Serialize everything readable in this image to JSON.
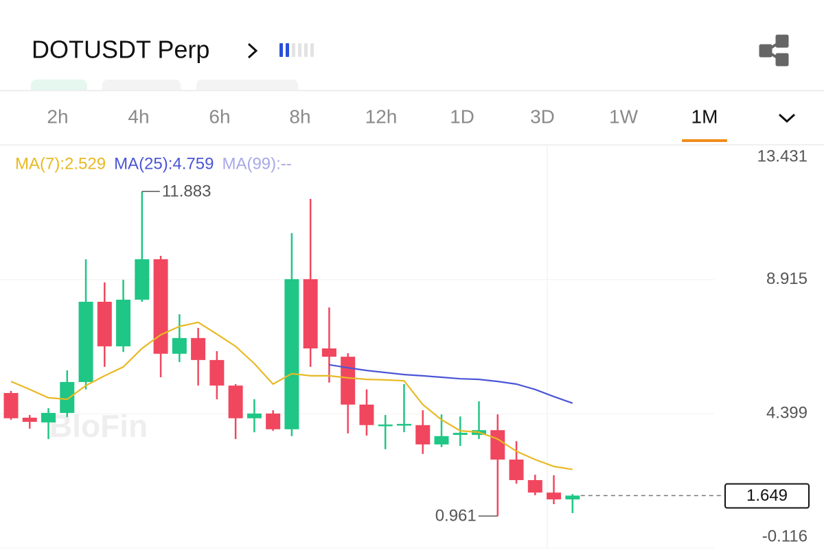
{
  "header": {
    "title": "DOTUSDT Perp"
  },
  "tabs": [
    "2h",
    "4h",
    "6h",
    "8h",
    "12h",
    "1D",
    "3D",
    "1W",
    "1M"
  ],
  "active_tab": 8,
  "chart_data": {
    "type": "candlestick",
    "watermark": "BloFin",
    "up_color": "#1fc685",
    "down_color": "#f0475f",
    "ylim": [
      -0.116,
      13.431
    ],
    "yticks": [
      -0.116,
      4.399,
      8.915,
      13.431
    ],
    "grid": true,
    "open": [
      5.1,
      4.27,
      4.11,
      4.43,
      5.47,
      8.17,
      6.67,
      8.24,
      9.6,
      6.42,
      6.95,
      6.21,
      5.35,
      4.25,
      4.41,
      3.88,
      8.93,
      6.6,
      6.32,
      4.71,
      4.0,
      4.02,
      4.02,
      3.37,
      3.69,
      3.69,
      3.85,
      2.86,
      2.17,
      1.75,
      1.52
    ],
    "high": [
      5.17,
      4.36,
      4.59,
      5.86,
      9.6,
      8.82,
      8.91,
      11.883,
      9.715,
      7.75,
      7.29,
      6.51,
      5.4,
      4.89,
      4.52,
      10.48,
      11.63,
      7.98,
      6.44,
      5.22,
      4.36,
      5.4,
      4.52,
      4.38,
      4.31,
      4.82,
      4.38,
      3.48,
      2.35,
      2.33,
      1.7
    ],
    "low": [
      4.2,
      3.9,
      3.55,
      4.29,
      5.22,
      5.98,
      6.48,
      8.17,
      5.63,
      6.14,
      5.35,
      4.89,
      3.55,
      3.78,
      3.83,
      3.65,
      5.98,
      5.45,
      3.74,
      3.67,
      3.21,
      3.78,
      3.05,
      3.28,
      3.32,
      3.55,
      0.961,
      2.05,
      1.66,
      1.36,
      1.06
    ],
    "close": [
      4.25,
      4.13,
      4.43,
      5.47,
      8.17,
      6.67,
      8.24,
      9.6,
      6.42,
      6.95,
      6.21,
      5.35,
      4.25,
      4.41,
      3.88,
      8.93,
      6.6,
      6.32,
      4.71,
      4.02,
      4.04,
      4.06,
      3.37,
      3.65,
      3.76,
      3.85,
      2.86,
      2.17,
      1.75,
      1.52,
      1.649
    ],
    "series": [
      {
        "name": "MA(7):2.529",
        "color": "#e8b923",
        "values": [
          5.49,
          5.22,
          4.94,
          4.89,
          5.35,
          5.68,
          5.98,
          6.6,
          7.06,
          7.34,
          7.48,
          7.08,
          6.67,
          6.09,
          5.4,
          5.75,
          5.68,
          5.68,
          5.61,
          5.56,
          5.54,
          5.51,
          4.71,
          4.2,
          3.83,
          3.78,
          3.55,
          3.14,
          2.86,
          2.63,
          2.529
        ]
      },
      {
        "name": "MA(25):4.759",
        "color": "#4b55d6",
        "values": [
          null,
          null,
          null,
          null,
          null,
          null,
          null,
          null,
          null,
          null,
          null,
          null,
          null,
          null,
          null,
          null,
          null,
          6.05,
          5.95,
          5.86,
          5.79,
          5.72,
          5.68,
          5.63,
          5.58,
          5.56,
          5.49,
          5.4,
          5.22,
          4.98,
          4.759
        ]
      },
      {
        "name": "MA(99):--",
        "color": "#a7a9e6",
        "values": [
          null,
          null,
          null,
          null,
          null,
          null,
          null,
          null,
          null,
          null,
          null,
          null,
          null,
          null,
          null,
          null,
          null,
          null,
          null,
          null,
          null,
          null,
          null,
          null,
          null,
          null,
          null,
          null,
          null,
          null,
          null
        ]
      }
    ],
    "high_label_index": 7,
    "low_label_index": 26
  }
}
